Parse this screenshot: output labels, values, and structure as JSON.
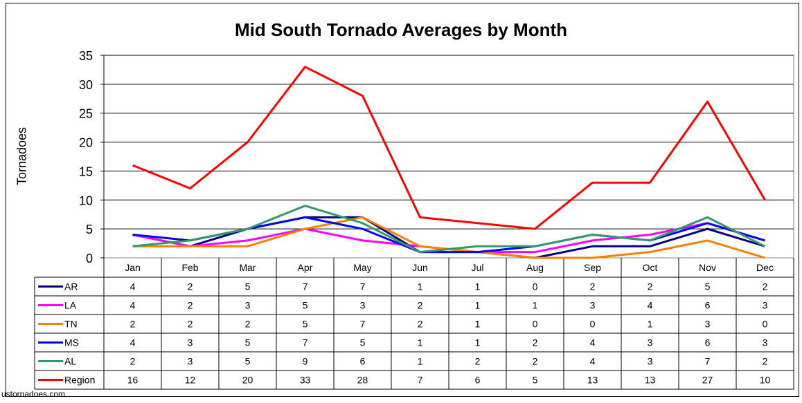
{
  "chart_data": {
    "type": "line",
    "title": "Mid South Tornado Averages by Month",
    "ylabel": "Tornadoes",
    "ylim": [
      0,
      35
    ],
    "yticks": [
      0,
      5,
      10,
      15,
      20,
      25,
      30,
      35
    ],
    "categories": [
      "Jan",
      "Feb",
      "Mar",
      "Apr",
      "May",
      "Jun",
      "Jul",
      "Aug",
      "Sep",
      "Oct",
      "Nov",
      "Dec"
    ],
    "grid": true,
    "legend": "data table below chart",
    "series": [
      {
        "name": "AR",
        "color": "#000080",
        "values": [
          4,
          2,
          5,
          7,
          7,
          1,
          1,
          0,
          2,
          2,
          5,
          2
        ]
      },
      {
        "name": "LA",
        "color": "#ff00ff",
        "values": [
          4,
          2,
          3,
          5,
          3,
          2,
          1,
          1,
          3,
          4,
          6,
          3
        ]
      },
      {
        "name": "TN",
        "color": "#ff8000",
        "values": [
          2,
          2,
          2,
          5,
          7,
          2,
          1,
          0,
          0,
          1,
          3,
          0
        ]
      },
      {
        "name": "MS",
        "color": "#0000ff",
        "values": [
          4,
          3,
          5,
          7,
          5,
          1,
          1,
          2,
          4,
          3,
          6,
          3
        ]
      },
      {
        "name": "AL",
        "color": "#339966",
        "values": [
          2,
          3,
          5,
          9,
          6,
          1,
          2,
          2,
          4,
          3,
          7,
          2
        ]
      },
      {
        "name": "Region",
        "color": "#ff0000",
        "values": [
          16,
          12,
          20,
          33,
          28,
          7,
          6,
          5,
          13,
          13,
          27,
          10
        ]
      }
    ]
  },
  "source": "ustornadoes.com"
}
